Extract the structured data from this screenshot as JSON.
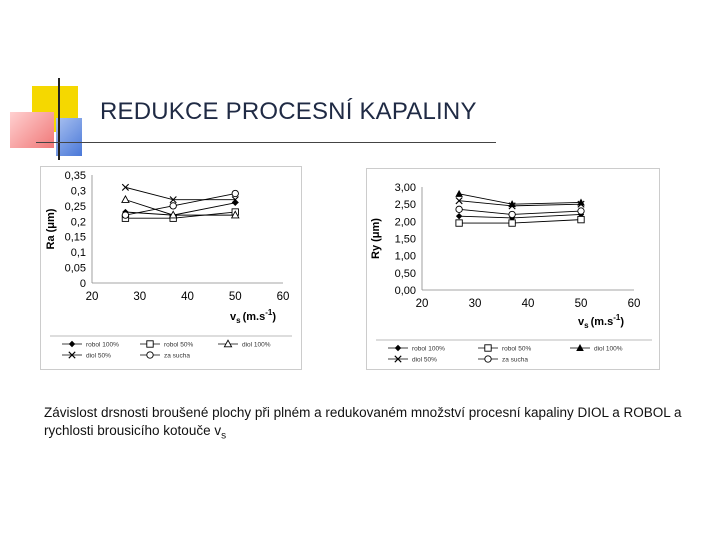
{
  "slide": {
    "title": "REDUKCE PROCESNÍ KAPALINY",
    "caption_main": "Závislost drsnosti broušené plochy při plném a redukovaném množství procesní kapaliny  DIOL a ROBOL  a rychlosti brousicího kotouče v",
    "caption_sub": "s"
  },
  "colors": {
    "deco_yellow": "#f5d800",
    "deco_red": "#f07878",
    "deco_blue": "#4a78d8",
    "deco_line": "#222222"
  },
  "chart_data": [
    {
      "type": "line",
      "name": "Ra chart",
      "ylabel": "Ra (μm)",
      "xlabel_main": "v",
      "xlabel_sub": "s",
      "xlabel_unit": "(m.s",
      "xlabel_exp": "-1",
      "xlabel_close": ")",
      "x": [
        27,
        37,
        50
      ],
      "xlim": [
        20,
        60
      ],
      "ylim": [
        0,
        0.35
      ],
      "xticks": [
        "20",
        "30",
        "40",
        "50",
        "60"
      ],
      "yticks": [
        "0",
        "0,05",
        "0,1",
        "0,15",
        "0,2",
        "0,25",
        "0,3",
        "0,35"
      ],
      "series": [
        {
          "name": "robol 100%",
          "marker": "diamond",
          "values": [
            0.23,
            0.22,
            0.26
          ]
        },
        {
          "name": "robol 50%",
          "marker": "square",
          "values": [
            0.21,
            0.21,
            0.23
          ]
        },
        {
          "name": "diol 100%",
          "marker": "triangle",
          "values": [
            0.27,
            0.22,
            0.22
          ]
        },
        {
          "name": "diol 50%",
          "marker": "x",
          "values": [
            0.31,
            0.27,
            0.27
          ]
        },
        {
          "name": "za sucha",
          "marker": "circle",
          "values": [
            0.22,
            0.25,
            0.29
          ]
        }
      ]
    },
    {
      "type": "line",
      "name": "Ry chart",
      "ylabel": "Ry (μm)",
      "xlabel_main": "v",
      "xlabel_sub": "s",
      "xlabel_unit": "(m.s",
      "xlabel_exp": "-1",
      "xlabel_close": ")",
      "x": [
        27,
        37,
        50
      ],
      "xlim": [
        20,
        60
      ],
      "ylim": [
        0,
        3
      ],
      "xticks": [
        "20",
        "30",
        "40",
        "50",
        "60"
      ],
      "yticks": [
        "0,00",
        "0,50",
        "1,00",
        "1,50",
        "2,00",
        "2,50",
        "3,00"
      ],
      "series": [
        {
          "name": "robol 100%",
          "marker": "diamond",
          "values": [
            2.15,
            2.1,
            2.2
          ]
        },
        {
          "name": "robol 50%",
          "marker": "square",
          "values": [
            1.95,
            1.95,
            2.05
          ]
        },
        {
          "name": "diol 100%",
          "marker": "triangle-filled",
          "values": [
            2.8,
            2.5,
            2.55
          ]
        },
        {
          "name": "diol 50%",
          "marker": "x",
          "values": [
            2.6,
            2.45,
            2.5
          ]
        },
        {
          "name": "za sucha",
          "marker": "circle",
          "values": [
            2.35,
            2.2,
            2.3
          ]
        }
      ]
    }
  ]
}
